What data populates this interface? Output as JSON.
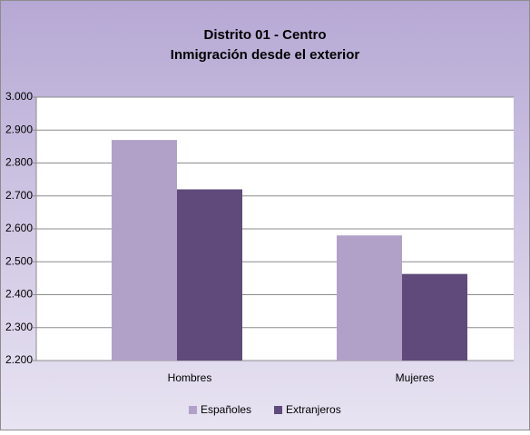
{
  "chart_data": {
    "type": "bar",
    "title": "Distrito 01 - Centro",
    "subtitle": "Inmigración desde el exterior",
    "categories": [
      "Hombres",
      "Mujeres"
    ],
    "series": [
      {
        "name": "Españoles",
        "color": "#b1a1c9",
        "values": [
          2870,
          2580
        ]
      },
      {
        "name": "Extranjeros",
        "color": "#5f4a7b",
        "values": [
          2720,
          2463
        ]
      }
    ],
    "ylim": [
      2200,
      3000
    ],
    "yticks": [
      {
        "value": 2200,
        "label": "2.200"
      },
      {
        "value": 2300,
        "label": "2.300"
      },
      {
        "value": 2400,
        "label": "2.400"
      },
      {
        "value": 2500,
        "label": "2.500"
      },
      {
        "value": 2600,
        "label": "2.600"
      },
      {
        "value": 2700,
        "label": "2.700"
      },
      {
        "value": 2800,
        "label": "2.800"
      },
      {
        "value": 2900,
        "label": "2.900"
      },
      {
        "value": 3000,
        "label": "3.000"
      }
    ],
    "grid": true,
    "legend": "bottom"
  }
}
